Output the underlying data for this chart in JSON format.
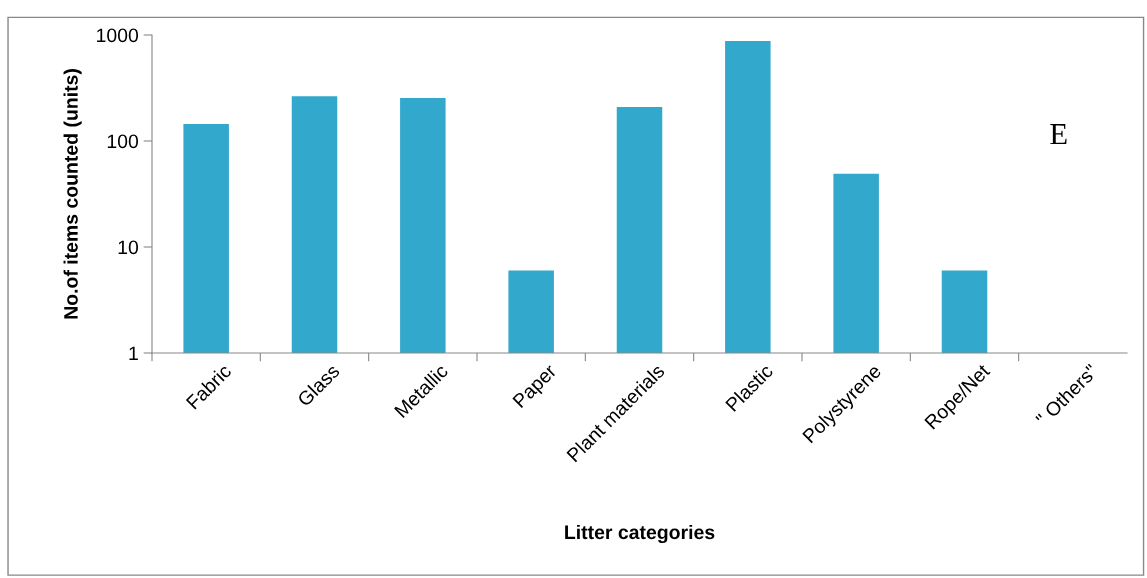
{
  "chart_data": {
    "type": "bar",
    "xlabel": "Litter categories",
    "ylabel": "No.of items counted (units)",
    "categories": [
      "Fabric",
      "Glass",
      "Metallic",
      "Paper",
      "Plant materials",
      "Plastic",
      "Polystyrene",
      "Rope/Net",
      "\" Others\""
    ],
    "values": [
      145,
      265,
      255,
      6,
      209,
      880,
      49,
      6,
      null
    ],
    "color": "#31a8cc",
    "log": true,
    "ylim": [
      1,
      1000
    ],
    "yticks": [
      1,
      10,
      100,
      1000
    ],
    "grid": false,
    "legend": false,
    "annotations": [
      "E"
    ]
  }
}
